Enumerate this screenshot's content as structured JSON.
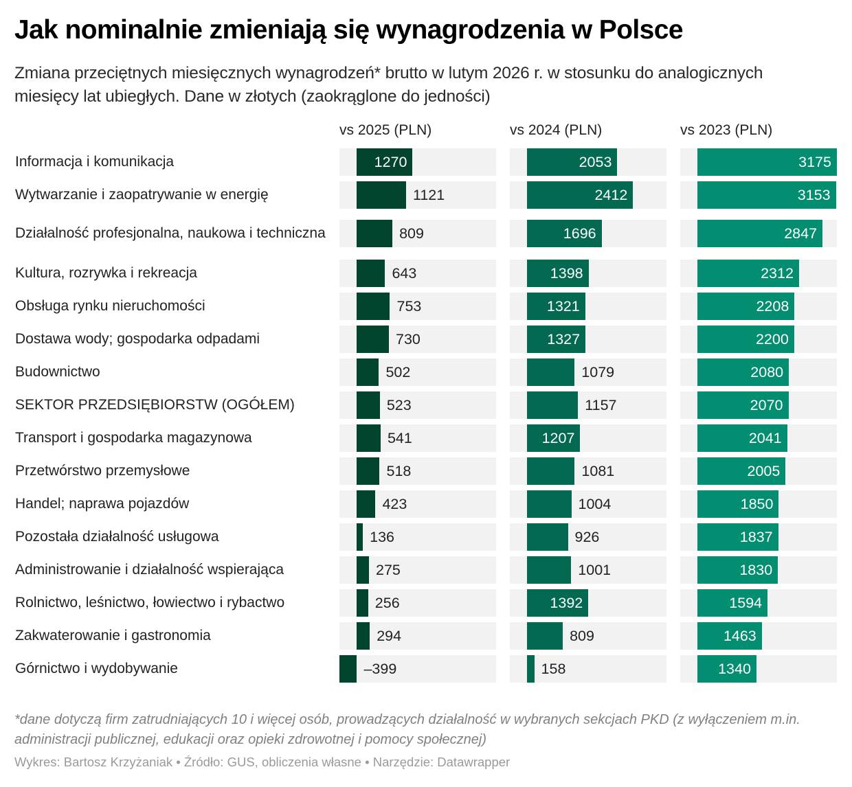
{
  "title": "Jak nominalnie zmieniają się wynagrodzenia w Polsce",
  "subtitle": "Zmiana przeciętnych miesięcznych wynagrodzeń* brutto w lutym 2026 r. w stosunku do analogicznych miesięcy lat ubiegłych. Dane w złotych (zaokrąglone do jedności)",
  "footnote": "*dane dotyczą firm zatrudniających 10 i więcej osób, prowadzących działalność w wybranych sekcjach PKD (z wyłączeniem m.in. administracji publicznej, edukacji oraz opieki zdrowotnej i pomocy społecznej)",
  "credits": "Wykres: Bartosz Krzyżaniak • Źródło: GUS, obliczenia własne • Narzędzie: Datawrapper",
  "chart_data": {
    "type": "bar",
    "title": "Jak nominalnie zmieniają się wynagrodzenia w Polsce",
    "xlabel": "",
    "ylabel": "",
    "xlim": [
      -399,
      3175
    ],
    "grid": false,
    "legend": "none",
    "categories": [
      "Informacja i komunikacja",
      "Wytwarzanie i zaopatrywanie w energię",
      "Działalność profesjonalna, naukowa i techniczna",
      "Kultura, rozrywka i rekreacja",
      "Obsługa rynku nieruchomości",
      "Dostawa wody; gospodarka odpadami",
      "Budownictwo",
      "SEKTOR PRZEDSIĘBIORSTW (OGÓŁEM)",
      "Transport i gospodarka magazynowa",
      "Przetwórstwo przemysłowe",
      "Handel; naprawa pojazdów",
      "Pozostała działalność usługowa",
      "Administrowanie i działalność wspierająca",
      "Rolnictwo, leśnictwo, łowiectwo i rybactwo",
      "Zakwaterowanie i gastronomia",
      "Górnictwo i wydobywanie"
    ],
    "series": [
      {
        "name": "vs 2025 (PLN)",
        "color": "#03442e",
        "values": [
          1270,
          1121,
          809,
          643,
          753,
          730,
          502,
          523,
          541,
          518,
          423,
          136,
          275,
          256,
          294,
          -399
        ]
      },
      {
        "name": "vs 2024 (PLN)",
        "color": "#036a51",
        "values": [
          2053,
          2412,
          1696,
          1398,
          1321,
          1327,
          1079,
          1157,
          1207,
          1081,
          1004,
          926,
          1001,
          1392,
          809,
          158
        ]
      },
      {
        "name": "vs 2023 (PLN)",
        "color": "#038e71",
        "values": [
          3175,
          3153,
          2847,
          2312,
          2208,
          2200,
          2080,
          2070,
          2041,
          2005,
          1850,
          1837,
          1830,
          1594,
          1463,
          1340
        ]
      }
    ],
    "track_color": "#f2f2f2",
    "negative_sign": "–"
  }
}
